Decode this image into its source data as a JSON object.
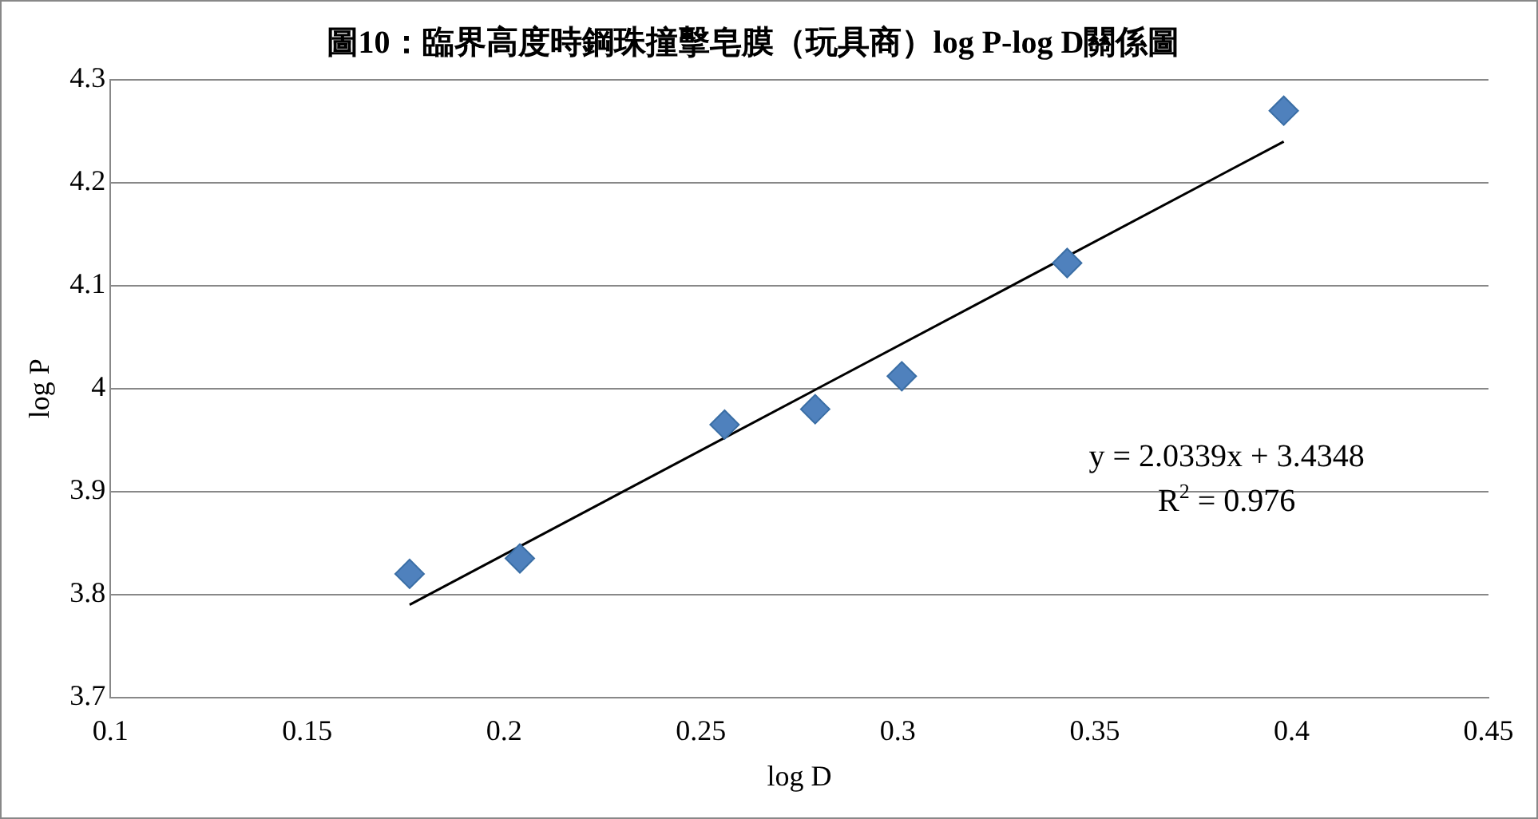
{
  "chart_data": {
    "type": "scatter",
    "title": "圖10：臨界高度時鋼珠撞擊皂膜（玩具商）log P-log D關係圖",
    "xlabel": "log D",
    "ylabel": "log P",
    "xlim": [
      0.1,
      0.45
    ],
    "xticks": [
      0.1,
      0.15,
      0.2,
      0.25,
      0.3,
      0.35,
      0.4,
      0.45
    ],
    "ylim": [
      3.7,
      4.3
    ],
    "yticks": [
      3.7,
      3.8,
      3.9,
      4,
      4.1,
      4.2,
      4.3
    ],
    "grid": "y",
    "series": [
      {
        "marker": "diamond",
        "color": "#4f81bd",
        "x": [
          0.176,
          0.204,
          0.256,
          0.279,
          0.301,
          0.343,
          0.398
        ],
        "values": [
          3.82,
          3.835,
          3.965,
          3.98,
          4.012,
          4.122,
          4.27
        ]
      },
      {
        "type": "line",
        "marker": "none",
        "color": "#000000",
        "x": [
          0.176,
          0.398
        ],
        "values": [
          3.79,
          4.24
        ]
      }
    ],
    "annotations": [
      "y = 2.0339x + 3.4348",
      "R$^{2}$ = 0.976"
    ]
  }
}
